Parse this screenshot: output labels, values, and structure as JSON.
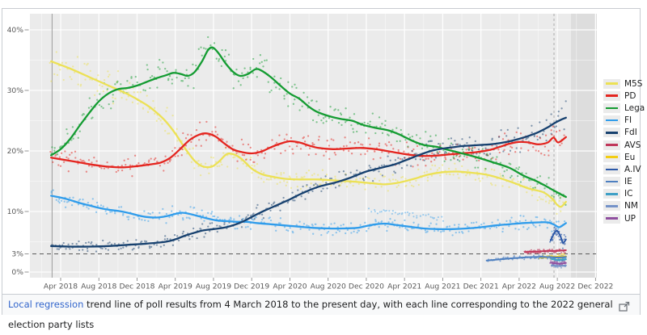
{
  "caption": {
    "link": "Local regression",
    "rest": " trend line of poll results from 4 March 2018 to the present day, with each line corresponding to the 2022 general election party lists"
  },
  "chart_data": {
    "type": "scatter",
    "description_visible": "poll-results scatter with local regression trend lines",
    "x_unit": "months since March 2018 (0 = Mar 2018)",
    "ylim": [
      0,
      42.5
    ],
    "grid": true,
    "legend_position": "right",
    "y_ticks": [
      {
        "v": 0,
        "label": "0%"
      },
      {
        "v": 3,
        "label": "3%"
      },
      {
        "v": 10,
        "label": "10%"
      },
      {
        "v": 20,
        "label": "20%"
      },
      {
        "v": 30,
        "label": "30%"
      },
      {
        "v": 40,
        "label": "40%"
      }
    ],
    "x_ticks": [
      {
        "m": 1,
        "label": "Apr 2018"
      },
      {
        "m": 5,
        "label": "Aug 2018"
      },
      {
        "m": 9,
        "label": "Dec 2018"
      },
      {
        "m": 13,
        "label": "Apr 2019"
      },
      {
        "m": 17,
        "label": "Aug 2019"
      },
      {
        "m": 21,
        "label": "Dec 2019"
      },
      {
        "m": 25,
        "label": "Apr 2020"
      },
      {
        "m": 29,
        "label": "Aug 2020"
      },
      {
        "m": 33,
        "label": "Dec 2020"
      },
      {
        "m": 37,
        "label": "Apr 2021"
      },
      {
        "m": 41,
        "label": "Aug 2021"
      },
      {
        "m": 45,
        "label": "Dec 2021"
      },
      {
        "m": 49,
        "label": "Apr 2022"
      },
      {
        "m": 53,
        "label": "Aug 2022"
      },
      {
        "m": 57,
        "label": "Dec 2022"
      }
    ],
    "threshold_line": {
      "value": 3,
      "style": "dashed"
    },
    "start_marker_month": 0.1,
    "present_day_marker_month": 52.65,
    "series": [
      {
        "id": "m5s",
        "label": "M5S",
        "color": "#ece155",
        "kind": "major",
        "points": [
          [
            0,
            34.8
          ],
          [
            2,
            33.6
          ],
          [
            4,
            32.2
          ],
          [
            6,
            30.8
          ],
          [
            8,
            29.4
          ],
          [
            10,
            27.6
          ],
          [
            11,
            26.4
          ],
          [
            12,
            24.9
          ],
          [
            13,
            22.9
          ],
          [
            14,
            20.5
          ],
          [
            15,
            18.4
          ],
          [
            15.8,
            17.5
          ],
          [
            16.8,
            17.4
          ],
          [
            17.6,
            18.3
          ],
          [
            18.4,
            19.5
          ],
          [
            19.2,
            19.4
          ],
          [
            20,
            18.6
          ],
          [
            21,
            17.1
          ],
          [
            22,
            16.2
          ],
          [
            23,
            15.8
          ],
          [
            24.5,
            15.4
          ],
          [
            26,
            15.3
          ],
          [
            28,
            15.3
          ],
          [
            30,
            15.1
          ],
          [
            32,
            14.9
          ],
          [
            34,
            14.6
          ],
          [
            35,
            14.5
          ],
          [
            36.5,
            14.8
          ],
          [
            38,
            15.4
          ],
          [
            39.5,
            16.1
          ],
          [
            41,
            16.5
          ],
          [
            42.5,
            16.6
          ],
          [
            44,
            16.4
          ],
          [
            45.5,
            16.1
          ],
          [
            47,
            15.5
          ],
          [
            48.5,
            14.7
          ],
          [
            50,
            13.8
          ],
          [
            51.5,
            13.2
          ],
          [
            52.4,
            12.2
          ],
          [
            53,
            11.1
          ],
          [
            53.4,
            10.8
          ],
          [
            53.9,
            11.6
          ]
        ]
      },
      {
        "id": "pd",
        "label": "PD",
        "color": "#e4251f",
        "kind": "major",
        "points": [
          [
            0,
            18.9
          ],
          [
            1.5,
            18.5
          ],
          [
            3,
            18.1
          ],
          [
            4.5,
            17.7
          ],
          [
            6,
            17.4
          ],
          [
            7.5,
            17.3
          ],
          [
            9,
            17.5
          ],
          [
            10.5,
            17.8
          ],
          [
            11.5,
            18.1
          ],
          [
            12.5,
            18.9
          ],
          [
            13.5,
            20.3
          ],
          [
            14.5,
            21.8
          ],
          [
            15.5,
            22.7
          ],
          [
            16.3,
            22.9
          ],
          [
            17.2,
            22.4
          ],
          [
            18,
            21.4
          ],
          [
            19,
            20.3
          ],
          [
            20,
            19.8
          ],
          [
            21,
            19.6
          ],
          [
            22,
            19.9
          ],
          [
            23,
            20.6
          ],
          [
            24,
            21.2
          ],
          [
            25,
            21.6
          ],
          [
            26,
            21.4
          ],
          [
            27,
            20.9
          ],
          [
            28,
            20.5
          ],
          [
            29.5,
            20.3
          ],
          [
            31,
            20.4
          ],
          [
            32.5,
            20.5
          ],
          [
            34,
            20.3
          ],
          [
            35.5,
            19.9
          ],
          [
            37,
            19.5
          ],
          [
            38.5,
            19.2
          ],
          [
            40,
            19.2
          ],
          [
            41.5,
            19.4
          ],
          [
            43,
            19.6
          ],
          [
            44.5,
            19.8
          ],
          [
            46,
            20.2
          ],
          [
            47,
            20.7
          ],
          [
            48,
            21.2
          ],
          [
            49,
            21.5
          ],
          [
            50,
            21.4
          ],
          [
            51,
            21.1
          ],
          [
            52,
            21.4
          ],
          [
            52.6,
            22.2
          ],
          [
            53.1,
            21.4
          ],
          [
            53.9,
            22.3
          ]
        ]
      },
      {
        "id": "lega",
        "label": "Lega",
        "color": "#149c32",
        "kind": "major",
        "points": [
          [
            0,
            19.3
          ],
          [
            1,
            20.3
          ],
          [
            2,
            22.0
          ],
          [
            3,
            24.2
          ],
          [
            4,
            26.3
          ],
          [
            5,
            28.2
          ],
          [
            6,
            29.5
          ],
          [
            7,
            30.2
          ],
          [
            8,
            30.4
          ],
          [
            9,
            30.8
          ],
          [
            10,
            31.4
          ],
          [
            11,
            32.0
          ],
          [
            12,
            32.5
          ],
          [
            12.8,
            32.9
          ],
          [
            13.6,
            32.7
          ],
          [
            14.3,
            32.4
          ],
          [
            15,
            33.0
          ],
          [
            15.8,
            34.8
          ],
          [
            16.4,
            36.6
          ],
          [
            16.9,
            37.1
          ],
          [
            17.5,
            36.2
          ],
          [
            18.3,
            34.4
          ],
          [
            19.1,
            33.0
          ],
          [
            19.8,
            32.4
          ],
          [
            20.6,
            32.7
          ],
          [
            21.4,
            33.5
          ],
          [
            22,
            33.3
          ],
          [
            23,
            32.2
          ],
          [
            24,
            30.8
          ],
          [
            25,
            29.5
          ],
          [
            26,
            28.6
          ],
          [
            27,
            27.3
          ],
          [
            27.8,
            26.5
          ],
          [
            29,
            25.8
          ],
          [
            30.3,
            25.3
          ],
          [
            31.5,
            25.0
          ],
          [
            32.7,
            24.3
          ],
          [
            34,
            23.8
          ],
          [
            35.3,
            23.4
          ],
          [
            36.5,
            22.7
          ],
          [
            37.8,
            21.7
          ],
          [
            39,
            21.0
          ],
          [
            40.3,
            20.7
          ],
          [
            41.5,
            20.2
          ],
          [
            42.8,
            19.7
          ],
          [
            44,
            19.2
          ],
          [
            45.3,
            18.6
          ],
          [
            46.5,
            18.0
          ],
          [
            48,
            17.2
          ],
          [
            49.5,
            15.9
          ],
          [
            50.7,
            15.1
          ],
          [
            51.8,
            14.2
          ],
          [
            52.6,
            13.5
          ],
          [
            53.3,
            12.9
          ],
          [
            53.9,
            12.4
          ]
        ]
      },
      {
        "id": "fi",
        "label": "FI",
        "color": "#2f9ceb",
        "kind": "major",
        "points": [
          [
            0,
            12.6
          ],
          [
            1,
            12.3
          ],
          [
            2,
            11.9
          ],
          [
            3,
            11.4
          ],
          [
            4,
            11.0
          ],
          [
            5,
            10.6
          ],
          [
            6,
            10.3
          ],
          [
            7,
            10.1
          ],
          [
            8,
            9.8
          ],
          [
            9,
            9.4
          ],
          [
            10,
            9.1
          ],
          [
            11,
            9.0
          ],
          [
            12,
            9.2
          ],
          [
            13,
            9.6
          ],
          [
            13.7,
            9.8
          ],
          [
            14.5,
            9.6
          ],
          [
            15.5,
            9.2
          ],
          [
            16.5,
            8.8
          ],
          [
            17.5,
            8.5
          ],
          [
            18.5,
            8.4
          ],
          [
            19.5,
            8.3
          ],
          [
            20.5,
            8.3
          ],
          [
            21.5,
            8.1
          ],
          [
            23,
            7.9
          ],
          [
            24.5,
            7.7
          ],
          [
            26,
            7.5
          ],
          [
            27.5,
            7.3
          ],
          [
            29,
            7.2
          ],
          [
            30.5,
            7.2
          ],
          [
            32,
            7.3
          ],
          [
            33,
            7.6
          ],
          [
            34,
            7.9
          ],
          [
            35,
            8.0
          ],
          [
            36,
            7.8
          ],
          [
            37.5,
            7.5
          ],
          [
            39,
            7.2
          ],
          [
            40.5,
            7.1
          ],
          [
            42,
            7.1
          ],
          [
            43.5,
            7.2
          ],
          [
            45,
            7.4
          ],
          [
            46.5,
            7.7
          ],
          [
            48,
            7.9
          ],
          [
            49.5,
            8.1
          ],
          [
            51,
            8.2
          ],
          [
            52,
            8.2
          ],
          [
            52.7,
            7.8
          ],
          [
            53.2,
            7.4
          ],
          [
            53.9,
            8.1
          ]
        ]
      },
      {
        "id": "fdi",
        "label": "FdI",
        "color": "#17416f",
        "kind": "major",
        "points": [
          [
            0,
            4.3
          ],
          [
            2,
            4.2
          ],
          [
            4,
            4.2
          ],
          [
            6,
            4.3
          ],
          [
            8,
            4.5
          ],
          [
            10,
            4.7
          ],
          [
            12,
            5.0
          ],
          [
            13,
            5.4
          ],
          [
            14,
            6.0
          ],
          [
            15,
            6.5
          ],
          [
            16,
            6.9
          ],
          [
            17,
            7.1
          ],
          [
            18,
            7.3
          ],
          [
            19,
            7.7
          ],
          [
            20,
            8.3
          ],
          [
            21,
            9.1
          ],
          [
            22,
            9.9
          ],
          [
            23,
            10.6
          ],
          [
            24,
            11.3
          ],
          [
            25,
            12.0
          ],
          [
            26,
            12.8
          ],
          [
            27,
            13.5
          ],
          [
            28,
            14.1
          ],
          [
            29,
            14.5
          ],
          [
            30,
            14.9
          ],
          [
            31,
            15.4
          ],
          [
            32,
            16.0
          ],
          [
            33,
            16.6
          ],
          [
            34,
            17.0
          ],
          [
            35,
            17.4
          ],
          [
            36,
            17.8
          ],
          [
            37,
            18.4
          ],
          [
            38,
            19.0
          ],
          [
            39,
            19.6
          ],
          [
            40,
            20.1
          ],
          [
            41,
            20.4
          ],
          [
            42,
            20.6
          ],
          [
            43,
            20.8
          ],
          [
            44,
            20.9
          ],
          [
            45,
            21.0
          ],
          [
            46,
            21.1
          ],
          [
            47,
            21.3
          ],
          [
            48,
            21.6
          ],
          [
            49,
            22.0
          ],
          [
            50,
            22.5
          ],
          [
            51,
            23.1
          ],
          [
            52,
            23.9
          ],
          [
            52.7,
            24.6
          ],
          [
            53.3,
            25.1
          ],
          [
            53.9,
            25.5
          ]
        ]
      },
      {
        "id": "avs",
        "label": "AVS",
        "color": "#c0375a",
        "kind": "minor",
        "points": [
          [
            49.6,
            3.3
          ],
          [
            51,
            3.4
          ],
          [
            52.2,
            3.5
          ],
          [
            53,
            3.5
          ],
          [
            53.9,
            3.6
          ]
        ]
      },
      {
        "id": "eu",
        "label": "Eu",
        "color": "#f3cd13",
        "kind": "minor",
        "points": [
          [
            51.2,
            2.4
          ],
          [
            52.5,
            2.5
          ],
          [
            53.9,
            2.6
          ]
        ]
      },
      {
        "id": "aiv",
        "label": "A.IV",
        "color": "#2b58a7",
        "kind": "minor",
        "points": [
          [
            52.3,
            5.2
          ],
          [
            52.7,
            6.5
          ],
          [
            53.0,
            6.8
          ],
          [
            53.35,
            5.8
          ],
          [
            53.6,
            4.8
          ],
          [
            53.9,
            5.4
          ]
        ]
      },
      {
        "id": "ie",
        "label": "IE",
        "color": "#4d7fc0",
        "kind": "minor",
        "points": [
          [
            45.6,
            1.9
          ],
          [
            47,
            2.1
          ],
          [
            48.5,
            2.3
          ],
          [
            50,
            2.45
          ],
          [
            51.5,
            2.5
          ],
          [
            53,
            2.4
          ],
          [
            53.9,
            2.5
          ]
        ]
      },
      {
        "id": "ic",
        "label": "IC",
        "color": "#3e9fc6",
        "kind": "minor",
        "points": [
          [
            52.4,
            2.15
          ],
          [
            53.1,
            2.0
          ],
          [
            53.9,
            2.1
          ]
        ]
      },
      {
        "id": "nm",
        "label": "NM",
        "color": "#7492c8",
        "kind": "minor",
        "points": [
          [
            52.4,
            1.1
          ],
          [
            53.1,
            1.0
          ],
          [
            53.9,
            1.1
          ]
        ]
      },
      {
        "id": "up",
        "label": "UP",
        "color": "#8f4f9f",
        "kind": "minor",
        "points": [
          [
            52.3,
            1.55
          ],
          [
            53.1,
            1.4
          ],
          [
            53.9,
            1.5
          ]
        ]
      }
    ],
    "extra_scatter": [
      {
        "color": "#2f9ceb",
        "m_from": 33.4,
        "m_to": 41.2,
        "v_from": 10.3,
        "v_to": 8.7
      }
    ]
  }
}
